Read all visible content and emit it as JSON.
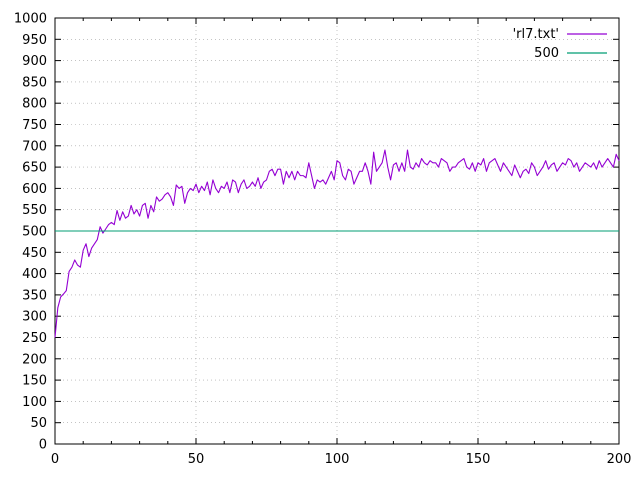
{
  "chart_data": {
    "type": "line",
    "title": "",
    "xlabel": "",
    "ylabel": "",
    "xlim": [
      0,
      200
    ],
    "ylim": [
      0,
      1000
    ],
    "x_ticks": [
      "0",
      "50",
      "100",
      "150",
      "200"
    ],
    "y_ticks": [
      "0",
      "50",
      "100",
      "150",
      "200",
      "250",
      "300",
      "350",
      "400",
      "450",
      "500",
      "550",
      "600",
      "650",
      "700",
      "750",
      "800",
      "850",
      "900",
      "950",
      "1000"
    ],
    "grid": true,
    "legend": "top-right",
    "series": [
      {
        "name": "'rl7.txt'",
        "color": "#9400d3",
        "x": [
          0,
          1,
          2,
          3,
          4,
          5,
          6,
          7,
          8,
          9,
          10,
          11,
          12,
          13,
          14,
          15,
          16,
          17,
          18,
          19,
          20,
          21,
          22,
          23,
          24,
          25,
          26,
          27,
          28,
          29,
          30,
          31,
          32,
          33,
          34,
          35,
          36,
          37,
          38,
          39,
          40,
          41,
          42,
          43,
          44,
          45,
          46,
          47,
          48,
          49,
          50,
          51,
          52,
          53,
          54,
          55,
          56,
          57,
          58,
          59,
          60,
          61,
          62,
          63,
          64,
          65,
          66,
          67,
          68,
          69,
          70,
          71,
          72,
          73,
          74,
          75,
          76,
          77,
          78,
          79,
          80,
          81,
          82,
          83,
          84,
          85,
          86,
          87,
          88,
          89,
          90,
          91,
          92,
          93,
          94,
          95,
          96,
          97,
          98,
          99,
          100,
          101,
          102,
          103,
          104,
          105,
          106,
          107,
          108,
          109,
          110,
          111,
          112,
          113,
          114,
          115,
          116,
          117,
          118,
          119,
          120,
          121,
          122,
          123,
          124,
          125,
          126,
          127,
          128,
          129,
          130,
          131,
          132,
          133,
          134,
          135,
          136,
          137,
          138,
          139,
          140,
          141,
          142,
          143,
          144,
          145,
          146,
          147,
          148,
          149,
          150,
          151,
          152,
          153,
          154,
          155,
          156,
          157,
          158,
          159,
          160,
          161,
          162,
          163,
          164,
          165,
          166,
          167,
          168,
          169,
          170,
          171,
          172,
          173,
          174,
          175,
          176,
          177,
          178,
          179,
          180,
          181,
          182,
          183,
          184,
          185,
          186,
          187,
          188,
          189,
          190,
          191,
          192,
          193,
          194,
          195,
          196,
          197,
          198,
          199,
          200
        ],
        "y": [
          250,
          320,
          345,
          352,
          360,
          405,
          415,
          432,
          420,
          415,
          455,
          470,
          440,
          460,
          470,
          480,
          510,
          495,
          505,
          515,
          520,
          515,
          548,
          525,
          545,
          530,
          535,
          560,
          540,
          550,
          535,
          560,
          565,
          530,
          560,
          545,
          580,
          570,
          575,
          585,
          590,
          580,
          560,
          608,
          600,
          605,
          565,
          590,
          600,
          595,
          610,
          590,
          605,
          595,
          615,
          585,
          620,
          600,
          590,
          605,
          600,
          615,
          590,
          620,
          615,
          590,
          610,
          620,
          600,
          605,
          615,
          605,
          625,
          600,
          615,
          620,
          640,
          645,
          630,
          645,
          645,
          610,
          640,
          625,
          640,
          620,
          640,
          630,
          630,
          625,
          660,
          630,
          600,
          620,
          615,
          620,
          610,
          625,
          640,
          620,
          665,
          660,
          630,
          620,
          645,
          640,
          610,
          625,
          640,
          640,
          660,
          640,
          610,
          685,
          640,
          650,
          660,
          690,
          650,
          620,
          655,
          660,
          640,
          660,
          640,
          690,
          650,
          645,
          660,
          650,
          670,
          660,
          655,
          665,
          660,
          660,
          650,
          670,
          665,
          660,
          640,
          650,
          650,
          660,
          665,
          670,
          650,
          645,
          660,
          640,
          660,
          655,
          670,
          640,
          660,
          665,
          670,
          655,
          640,
          660,
          650,
          640,
          630,
          655,
          640,
          625,
          640,
          645,
          635,
          660,
          650,
          630,
          640,
          650,
          665,
          645,
          655,
          660,
          640,
          650,
          660,
          655,
          670,
          665,
          650,
          660,
          640,
          650,
          660,
          655,
          650,
          660,
          645,
          665,
          650,
          660,
          670,
          660,
          650,
          680,
          665
        ]
      },
      {
        "name": "500",
        "color": "#009e73",
        "x": [
          0,
          200
        ],
        "y": [
          500,
          500
        ]
      }
    ]
  }
}
